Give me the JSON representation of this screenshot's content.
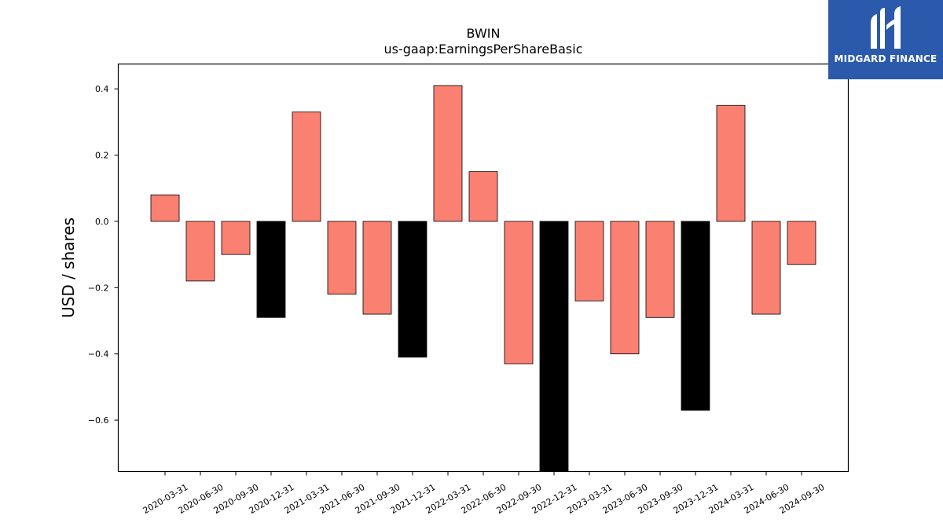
{
  "chart_data": {
    "type": "bar",
    "title": "BWIN",
    "subtitle": "us-gaap:EarningsPerShareBasic",
    "xlabel": "",
    "ylabel": "USD / shares",
    "ylim": [
      -0.755,
      0.475
    ],
    "yticks": [
      0.4,
      0.2,
      0.0,
      -0.2,
      -0.4,
      -0.6
    ],
    "ytick_labels": [
      "0.4",
      "0.2",
      "0.0",
      "−0.2",
      "−0.4",
      "−0.6"
    ],
    "grid": false,
    "categories": [
      "2020-03-31",
      "2020-06-30",
      "2020-09-30",
      "2020-12-31",
      "2021-03-31",
      "2021-06-30",
      "2021-09-30",
      "2021-12-31",
      "2022-03-31",
      "2022-06-30",
      "2022-09-30",
      "2022-12-31",
      "2023-03-31",
      "2023-06-30",
      "2023-09-30",
      "2023-12-31",
      "2024-03-31",
      "2024-06-30",
      "2024-09-30"
    ],
    "values": [
      0.08,
      -0.18,
      -0.1,
      -0.29,
      0.33,
      -0.22,
      -0.28,
      -0.41,
      0.41,
      0.15,
      -0.43,
      -0.8,
      -0.24,
      -0.4,
      -0.29,
      -0.57,
      0.35,
      -0.28,
      -0.13
    ],
    "bar_colors": [
      "#fa8072",
      "#fa8072",
      "#fa8072",
      "#000000",
      "#fa8072",
      "#fa8072",
      "#fa8072",
      "#000000",
      "#fa8072",
      "#fa8072",
      "#fa8072",
      "#000000",
      "#fa8072",
      "#fa8072",
      "#fa8072",
      "#000000",
      "#fa8072",
      "#fa8072",
      "#fa8072"
    ],
    "edge_color": "#000000"
  },
  "logo": {
    "text": "MIDGARD FINANCE",
    "background": "#2b5aad"
  }
}
